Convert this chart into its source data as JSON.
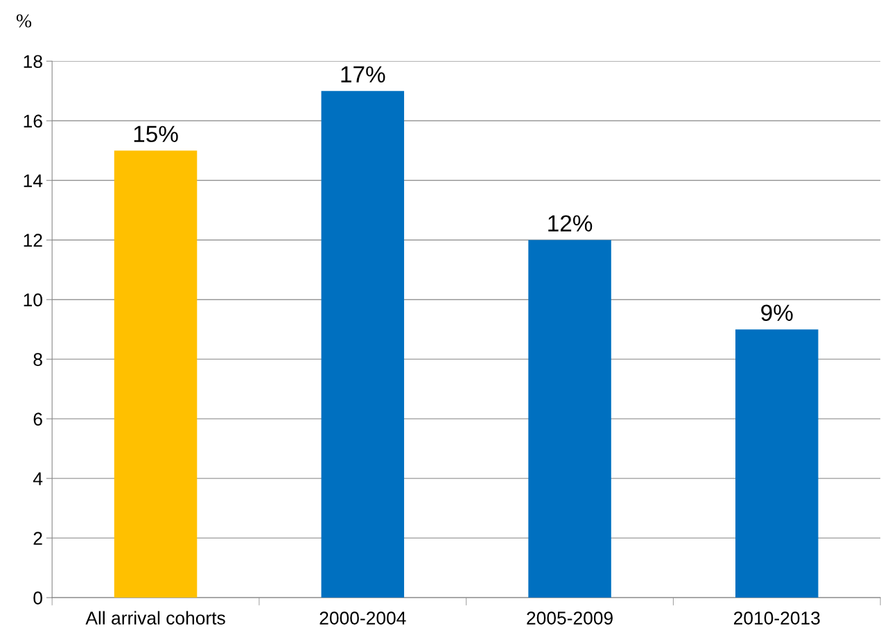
{
  "chart_data": {
    "type": "bar",
    "ylabel": "%",
    "categories": [
      "All arrival cohorts",
      "2000-2004",
      "2005-2009",
      "2010-2013"
    ],
    "values": [
      15,
      17,
      12,
      9
    ],
    "colors": [
      "#ffc000",
      "#0070c0",
      "#0070c0",
      "#0070c0"
    ],
    "value_labels": [
      "15%",
      "17%",
      "12%",
      "9%"
    ],
    "ylim": [
      0,
      18
    ],
    "yticks": [
      0,
      2,
      4,
      6,
      8,
      10,
      12,
      14,
      16,
      18
    ],
    "grid": "y",
    "legend": false
  }
}
